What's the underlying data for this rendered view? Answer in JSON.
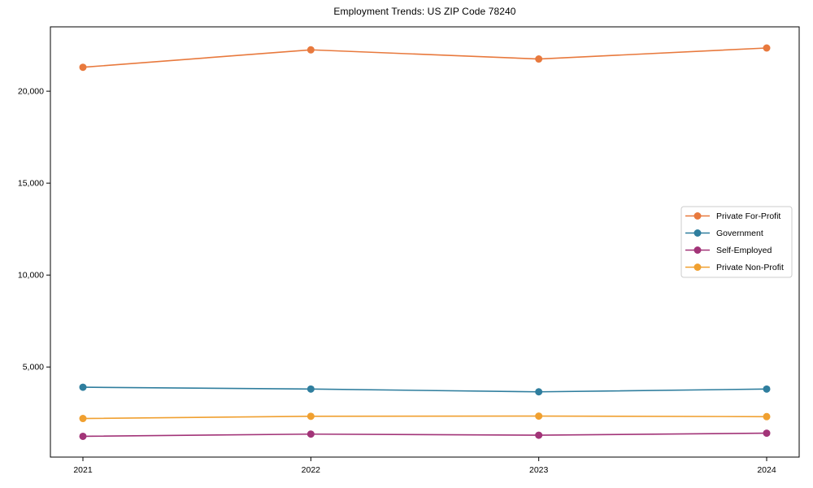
{
  "chart_data": {
    "type": "line",
    "title": "Employment Trends: US ZIP Code 78240",
    "categories": [
      "2021",
      "2022",
      "2023",
      "2024"
    ],
    "series": [
      {
        "name": "Private For-Profit",
        "color": "#e8793d",
        "values": [
          21300,
          22250,
          21750,
          22350
        ]
      },
      {
        "name": "Government",
        "color": "#2f7e9e",
        "values": [
          3900,
          3800,
          3650,
          3800
        ]
      },
      {
        "name": "Self-Employed",
        "color": "#a23478",
        "values": [
          1230,
          1350,
          1290,
          1400
        ]
      },
      {
        "name": "Private Non-Profit",
        "color": "#f0a030",
        "values": [
          2200,
          2320,
          2330,
          2300
        ]
      }
    ],
    "xlabel": "",
    "ylabel": "",
    "y_ticks": [
      5000,
      10000,
      15000,
      20000
    ],
    "y_tick_labels": [
      "5,000",
      "10,000",
      "15,000",
      "20,000"
    ],
    "ylim": [
      100,
      23500
    ],
    "grid": false,
    "legend_position": "center right",
    "marker": "circle",
    "line_width": 1.6,
    "marker_radius": 4.5,
    "frame_color": "#000000",
    "legend_border_color": "#cccccc",
    "background": "#ffffff"
  }
}
